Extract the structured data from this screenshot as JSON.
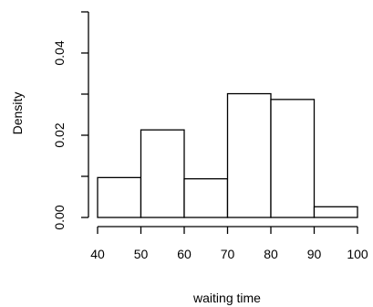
{
  "chart_data": {
    "type": "bar",
    "subtype": "histogram",
    "title": "",
    "xlabel": "waiting time",
    "ylabel": "Density",
    "bins": [
      {
        "start": 40,
        "end": 50,
        "density": 0.0097
      },
      {
        "start": 50,
        "end": 60,
        "density": 0.0213
      },
      {
        "start": 60,
        "end": 70,
        "density": 0.0094
      },
      {
        "start": 70,
        "end": 80,
        "density": 0.0301
      },
      {
        "start": 80,
        "end": 90,
        "density": 0.0287
      },
      {
        "start": 90,
        "end": 100,
        "density": 0.0026
      }
    ],
    "xlim": [
      40,
      100
    ],
    "ylim": [
      0,
      0.05
    ],
    "x_ticks": [
      40,
      50,
      60,
      70,
      80,
      90,
      100
    ],
    "x_tick_labels": [
      "40",
      "50",
      "60",
      "70",
      "80",
      "90",
      "100"
    ],
    "y_ticks": [
      0,
      0.02,
      0.04
    ],
    "y_tick_labels": [
      "0.00",
      "0.02",
      "0.04"
    ],
    "grid": false,
    "legend": "none",
    "bar_fill": "#ffffff",
    "bar_stroke": "#000000"
  }
}
